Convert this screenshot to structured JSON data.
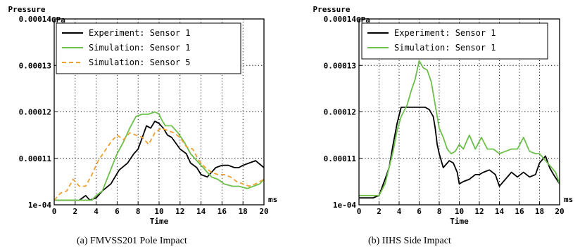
{
  "chart_data": [
    {
      "type": "line",
      "caption": "(a)  FMVSS201 Pole Impact",
      "ylabel": "Pressure",
      "yunit": "GPa",
      "xlabel": "Time",
      "xunit": "ms",
      "xlim": [
        0,
        20
      ],
      "ylim": [
        0.0001,
        0.00014
      ],
      "xticks": [
        "0",
        "2",
        "4",
        "6",
        "8",
        "10",
        "12",
        "14",
        "16",
        "18",
        "20"
      ],
      "yticks": [
        {
          "value": 0.0001,
          "label": "1e-04"
        },
        {
          "value": 0.00011,
          "label": "0.00011"
        },
        {
          "value": 0.00012,
          "label": "0.00012"
        },
        {
          "value": 0.00013,
          "label": "0.00013"
        },
        {
          "value": 0.00014,
          "label": "0.00014"
        }
      ],
      "grid": true,
      "legend_position": "top",
      "series": [
        {
          "name": "Experiment: Sensor 1",
          "color": "#000000",
          "dash": "solid",
          "points": [
            [
              0,
              0.000101
            ],
            [
              2.4,
              0.000101
            ],
            [
              3.0,
              0.000102
            ],
            [
              3.4,
              0.000101
            ],
            [
              4.0,
              0.0001015
            ],
            [
              4.6,
              0.000103
            ],
            [
              5.4,
              0.0001045
            ],
            [
              6.2,
              0.0001075
            ],
            [
              7.0,
              0.000109
            ],
            [
              7.6,
              0.000111
            ],
            [
              8.0,
              0.000112
            ],
            [
              8.4,
              0.0001145
            ],
            [
              8.8,
              0.000117
            ],
            [
              9.2,
              0.0001165
            ],
            [
              9.6,
              0.000118
            ],
            [
              10.0,
              0.0001175
            ],
            [
              10.4,
              0.0001165
            ],
            [
              10.8,
              0.000115
            ],
            [
              11.2,
              0.0001145
            ],
            [
              12.0,
              0.000112
            ],
            [
              12.6,
              0.000111
            ],
            [
              13.0,
              0.000109
            ],
            [
              13.6,
              0.000108
            ],
            [
              14.0,
              0.0001065
            ],
            [
              14.6,
              0.000106
            ],
            [
              15.0,
              0.000107
            ],
            [
              15.4,
              0.000108
            ],
            [
              16.0,
              0.0001085
            ],
            [
              16.6,
              0.0001085
            ],
            [
              17.2,
              0.000108
            ],
            [
              17.6,
              0.000108
            ],
            [
              18.0,
              0.0001085
            ],
            [
              18.6,
              0.000109
            ],
            [
              19.2,
              0.0001095
            ],
            [
              20.0,
              0.000108
            ]
          ]
        },
        {
          "name": "Simulation: Sensor 1",
          "color": "#6cc04a",
          "dash": "solid",
          "points": [
            [
              0,
              0.000101
            ],
            [
              3.6,
              0.000101
            ],
            [
              4.0,
              0.000102
            ],
            [
              4.6,
              0.000103
            ],
            [
              5.2,
              0.0001065
            ],
            [
              6.0,
              0.000111
            ],
            [
              6.6,
              0.0001135
            ],
            [
              7.2,
              0.0001165
            ],
            [
              7.8,
              0.000119
            ],
            [
              8.4,
              0.0001195
            ],
            [
              9.0,
              0.0001195
            ],
            [
              9.6,
              0.00012
            ],
            [
              10.0,
              0.0001195
            ],
            [
              10.2,
              0.0001185
            ],
            [
              10.6,
              0.000117
            ],
            [
              11.2,
              0.000117
            ],
            [
              11.8,
              0.0001155
            ],
            [
              12.4,
              0.0001135
            ],
            [
              13.0,
              0.000111
            ],
            [
              13.6,
              0.0001095
            ],
            [
              14.2,
              0.000108
            ],
            [
              15.0,
              0.000106
            ],
            [
              15.6,
              0.0001055
            ],
            [
              16.2,
              0.0001045
            ],
            [
              17.0,
              0.000104
            ],
            [
              17.6,
              0.000104
            ],
            [
              18.4,
              0.0001035
            ],
            [
              19.0,
              0.000104
            ],
            [
              19.6,
              0.0001045
            ],
            [
              20.0,
              0.0001055
            ]
          ]
        },
        {
          "name": "Simulation: Sensor 5",
          "color": "#f0a030",
          "dash": "dashed",
          "points": [
            [
              0,
              0.000101
            ],
            [
              0.6,
              0.0001025
            ],
            [
              1.2,
              0.000103
            ],
            [
              1.8,
              0.0001055
            ],
            [
              2.4,
              0.000104
            ],
            [
              3.0,
              0.000104
            ],
            [
              3.6,
              0.0001065
            ],
            [
              4.2,
              0.0001095
            ],
            [
              4.8,
              0.0001115
            ],
            [
              5.4,
              0.0001135
            ],
            [
              6.0,
              0.000115
            ],
            [
              6.6,
              0.000114
            ],
            [
              7.2,
              0.0001155
            ],
            [
              7.8,
              0.000115
            ],
            [
              8.4,
              0.0001145
            ],
            [
              9.0,
              0.000113
            ],
            [
              9.6,
              0.0001155
            ],
            [
              10.2,
              0.0001165
            ],
            [
              10.8,
              0.000116
            ],
            [
              11.4,
              0.0001155
            ],
            [
              12.0,
              0.0001145
            ],
            [
              12.6,
              0.0001125
            ],
            [
              13.2,
              0.000112
            ],
            [
              13.8,
              0.0001095
            ],
            [
              14.4,
              0.000108
            ],
            [
              15.0,
              0.000107
            ],
            [
              15.6,
              0.0001065
            ],
            [
              16.2,
              0.0001065
            ],
            [
              16.8,
              0.000106
            ],
            [
              17.4,
              0.000105
            ],
            [
              18.0,
              0.0001045
            ],
            [
              18.6,
              0.000104
            ],
            [
              19.2,
              0.0001045
            ],
            [
              20.0,
              0.0001055
            ]
          ]
        }
      ]
    },
    {
      "type": "line",
      "caption": "(b)  IIHS Side Impact",
      "ylabel": "Pressure",
      "yunit": "GPa",
      "xlabel": "Time",
      "xunit": "ms",
      "xlim": [
        0,
        20
      ],
      "ylim": [
        0.0001,
        0.00014
      ],
      "xticks": [
        "0",
        "2",
        "4",
        "6",
        "8",
        "10",
        "12",
        "14",
        "16",
        "18",
        "20"
      ],
      "yticks": [
        {
          "value": 0.0001,
          "label": "1e-04"
        },
        {
          "value": 0.00011,
          "label": "0.00011"
        },
        {
          "value": 0.00012,
          "label": "0.00012"
        },
        {
          "value": 0.00013,
          "label": "0.00013"
        },
        {
          "value": 0.00014,
          "label": "0.00014"
        }
      ],
      "grid": true,
      "legend_position": "top",
      "series": [
        {
          "name": "Experiment: Sensor 1",
          "color": "#000000",
          "dash": "solid",
          "points": [
            [
              0,
              0.0001015
            ],
            [
              1.4,
              0.0001015
            ],
            [
              2.0,
              0.000102
            ],
            [
              2.6,
              0.0001055
            ],
            [
              3.0,
              0.000108
            ],
            [
              3.4,
              0.000113
            ],
            [
              3.8,
              0.0001175
            ],
            [
              4.2,
              0.000121
            ],
            [
              5.0,
              0.000121
            ],
            [
              6.0,
              0.000121
            ],
            [
              6.6,
              0.000121
            ],
            [
              7.0,
              0.0001205
            ],
            [
              7.4,
              0.000119
            ],
            [
              7.6,
              0.0001165
            ],
            [
              7.8,
              0.000113
            ],
            [
              8.0,
              0.000111
            ],
            [
              8.4,
              0.000108
            ],
            [
              9.0,
              0.0001095
            ],
            [
              9.4,
              0.000109
            ],
            [
              9.8,
              0.000107
            ],
            [
              10.0,
              0.0001045
            ],
            [
              10.4,
              0.000105
            ],
            [
              11.0,
              0.0001055
            ],
            [
              11.6,
              0.0001065
            ],
            [
              12.0,
              0.0001065
            ],
            [
              12.4,
              0.000107
            ],
            [
              13.0,
              0.0001075
            ],
            [
              13.6,
              0.0001065
            ],
            [
              14.0,
              0.000104
            ],
            [
              14.6,
              0.0001055
            ],
            [
              15.2,
              0.000107
            ],
            [
              15.8,
              0.000106
            ],
            [
              16.4,
              0.000107
            ],
            [
              17.0,
              0.000106
            ],
            [
              17.6,
              0.0001065
            ],
            [
              18.0,
              0.000109
            ],
            [
              18.6,
              0.0001105
            ],
            [
              19.0,
              0.000108
            ],
            [
              19.4,
              0.0001065
            ],
            [
              20.0,
              0.0001045
            ]
          ]
        },
        {
          "name": "Simulation: Sensor 1",
          "color": "#6cc04a",
          "dash": "solid",
          "points": [
            [
              0,
              0.000102
            ],
            [
              1.4,
              0.000102
            ],
            [
              2.0,
              0.000102
            ],
            [
              2.6,
              0.0001045
            ],
            [
              3.0,
              0.000108
            ],
            [
              3.4,
              0.0001115
            ],
            [
              3.8,
              0.000116
            ],
            [
              4.2,
              0.000119
            ],
            [
              4.8,
              0.0001215
            ],
            [
              5.2,
              0.0001245
            ],
            [
              5.6,
              0.000127
            ],
            [
              6.0,
              0.000131
            ],
            [
              6.4,
              0.0001295
            ],
            [
              6.8,
              0.000129
            ],
            [
              7.2,
              0.0001265
            ],
            [
              7.6,
              0.0001215
            ],
            [
              8.0,
              0.0001165
            ],
            [
              8.4,
              0.0001145
            ],
            [
              8.8,
              0.000112
            ],
            [
              9.2,
              0.000111
            ],
            [
              9.6,
              0.0001115
            ],
            [
              10.0,
              0.000113
            ],
            [
              10.4,
              0.000112
            ],
            [
              11.0,
              0.000115
            ],
            [
              11.6,
              0.000112
            ],
            [
              12.2,
              0.0001145
            ],
            [
              12.8,
              0.000112
            ],
            [
              13.4,
              0.000112
            ],
            [
              14.0,
              0.000111
            ],
            [
              14.6,
              0.0001115
            ],
            [
              15.2,
              0.000112
            ],
            [
              15.8,
              0.000112
            ],
            [
              16.4,
              0.0001145
            ],
            [
              17.0,
              0.0001115
            ],
            [
              17.6,
              0.000111
            ],
            [
              18.0,
              0.000111
            ],
            [
              18.6,
              0.0001095
            ],
            [
              19.0,
              0.0001085
            ],
            [
              19.6,
              0.000107
            ],
            [
              20.0,
              0.0001045
            ]
          ]
        }
      ]
    }
  ]
}
